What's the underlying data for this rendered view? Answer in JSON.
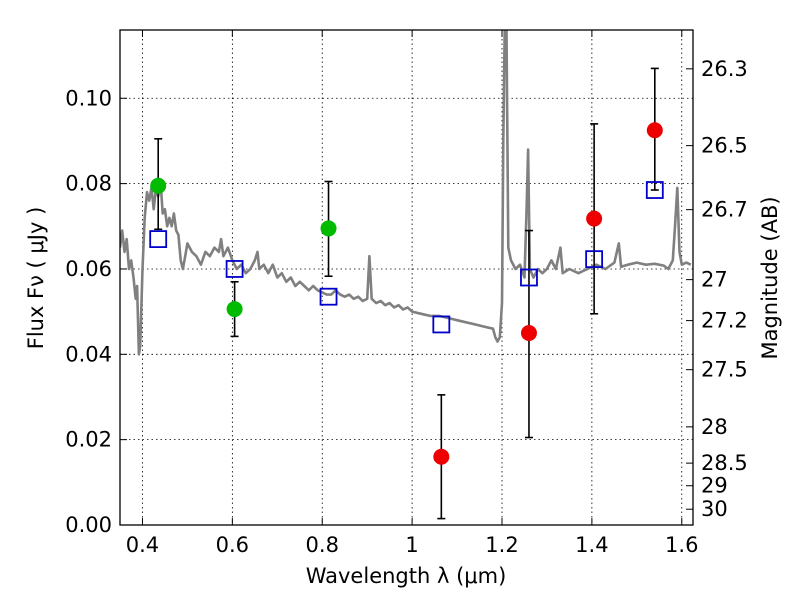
{
  "chart_data": {
    "type": "scatter",
    "xlabel": "Wavelength  λ (μm)",
    "ylabel": "Flux  Fν  ( μJy )",
    "ylabel_right": "Magnitude (AB)",
    "xlim": [
      0.35,
      1.625
    ],
    "ylim": [
      0.0,
      0.116
    ],
    "grid": true,
    "x_ticks": [
      {
        "value": 0.4,
        "label": "0.4"
      },
      {
        "value": 0.6,
        "label": "0.6"
      },
      {
        "value": 0.8,
        "label": "0.8"
      },
      {
        "value": 1.0,
        "label": "1"
      },
      {
        "value": 1.2,
        "label": "1.2"
      },
      {
        "value": 1.4,
        "label": "1.4"
      },
      {
        "value": 1.6,
        "label": "1.6"
      }
    ],
    "y_ticks": [
      {
        "value": 0.0,
        "label": "0.00"
      },
      {
        "value": 0.02,
        "label": "0.02"
      },
      {
        "value": 0.04,
        "label": "0.04"
      },
      {
        "value": 0.06,
        "label": "0.06"
      },
      {
        "value": 0.08,
        "label": "0.08"
      },
      {
        "value": 0.1,
        "label": "0.10"
      }
    ],
    "mag_ticks": [
      {
        "flux": 0.1069,
        "label": "26.3"
      },
      {
        "flux": 0.0889,
        "label": "26.5"
      },
      {
        "flux": 0.0739,
        "label": "26.7"
      },
      {
        "flux": 0.0575,
        "label": "27"
      },
      {
        "flux": 0.0479,
        "label": "27.2"
      },
      {
        "flux": 0.0364,
        "label": "27.5"
      },
      {
        "flux": 0.023,
        "label": "28"
      },
      {
        "flux": 0.0145,
        "label": "28.5"
      },
      {
        "flux": 0.0092,
        "label": "29"
      },
      {
        "flux": 0.0037,
        "label": "30"
      }
    ],
    "series": [
      {
        "name": "model-spectrum",
        "kind": "line",
        "color": "#808080",
        "points": [
          [
            0.35,
            0.065
          ],
          [
            0.355,
            0.069
          ],
          [
            0.36,
            0.064
          ],
          [
            0.365,
            0.067
          ],
          [
            0.37,
            0.06
          ],
          [
            0.375,
            0.062
          ],
          [
            0.38,
            0.058
          ],
          [
            0.385,
            0.053
          ],
          [
            0.388,
            0.056
          ],
          [
            0.392,
            0.04
          ],
          [
            0.395,
            0.042
          ],
          [
            0.4,
            0.06
          ],
          [
            0.405,
            0.072
          ],
          [
            0.41,
            0.078
          ],
          [
            0.415,
            0.076
          ],
          [
            0.42,
            0.079
          ],
          [
            0.425,
            0.074
          ],
          [
            0.43,
            0.079
          ],
          [
            0.435,
            0.077
          ],
          [
            0.44,
            0.081
          ],
          [
            0.445,
            0.073
          ],
          [
            0.45,
            0.074
          ],
          [
            0.455,
            0.07
          ],
          [
            0.46,
            0.072
          ],
          [
            0.465,
            0.07
          ],
          [
            0.47,
            0.073
          ],
          [
            0.475,
            0.069
          ],
          [
            0.48,
            0.068
          ],
          [
            0.485,
            0.062
          ],
          [
            0.49,
            0.06
          ],
          [
            0.495,
            0.063
          ],
          [
            0.5,
            0.066
          ],
          [
            0.51,
            0.064
          ],
          [
            0.52,
            0.063
          ],
          [
            0.53,
            0.061
          ],
          [
            0.54,
            0.064
          ],
          [
            0.55,
            0.063
          ],
          [
            0.56,
            0.065
          ],
          [
            0.57,
            0.064
          ],
          [
            0.575,
            0.067
          ],
          [
            0.58,
            0.063
          ],
          [
            0.59,
            0.065
          ],
          [
            0.6,
            0.062
          ],
          [
            0.61,
            0.06
          ],
          [
            0.62,
            0.061
          ],
          [
            0.63,
            0.059
          ],
          [
            0.64,
            0.06
          ],
          [
            0.65,
            0.062
          ],
          [
            0.656,
            0.064
          ],
          [
            0.66,
            0.06
          ],
          [
            0.67,
            0.061
          ],
          [
            0.68,
            0.059
          ],
          [
            0.69,
            0.061
          ],
          [
            0.7,
            0.058
          ],
          [
            0.71,
            0.059
          ],
          [
            0.72,
            0.057
          ],
          [
            0.73,
            0.058
          ],
          [
            0.74,
            0.056
          ],
          [
            0.75,
            0.057
          ],
          [
            0.76,
            0.056
          ],
          [
            0.77,
            0.055
          ],
          [
            0.78,
            0.056
          ],
          [
            0.79,
            0.055
          ],
          [
            0.8,
            0.0545
          ],
          [
            0.81,
            0.054
          ],
          [
            0.82,
            0.054
          ],
          [
            0.83,
            0.055
          ],
          [
            0.84,
            0.054
          ],
          [
            0.85,
            0.0535
          ],
          [
            0.86,
            0.054
          ],
          [
            0.87,
            0.053
          ],
          [
            0.88,
            0.0535
          ],
          [
            0.89,
            0.0525
          ],
          [
            0.9,
            0.053
          ],
          [
            0.905,
            0.063
          ],
          [
            0.91,
            0.053
          ],
          [
            0.92,
            0.052
          ],
          [
            0.93,
            0.0525
          ],
          [
            0.94,
            0.0515
          ],
          [
            0.95,
            0.052
          ],
          [
            0.96,
            0.051
          ],
          [
            0.97,
            0.0515
          ],
          [
            0.98,
            0.0505
          ],
          [
            0.99,
            0.051
          ],
          [
            1.0,
            0.05
          ],
          [
            1.02,
            0.0495
          ],
          [
            1.04,
            0.049
          ],
          [
            1.06,
            0.049
          ],
          [
            1.08,
            0.0485
          ],
          [
            1.1,
            0.048
          ],
          [
            1.12,
            0.0475
          ],
          [
            1.14,
            0.047
          ],
          [
            1.16,
            0.0465
          ],
          [
            1.18,
            0.046
          ],
          [
            1.185,
            0.044
          ],
          [
            1.19,
            0.043
          ],
          [
            1.195,
            0.044
          ],
          [
            1.2,
            0.052
          ],
          [
            1.203,
            0.09
          ],
          [
            1.206,
            0.116
          ],
          [
            1.21,
            0.116
          ],
          [
            1.214,
            0.065
          ],
          [
            1.22,
            0.062
          ],
          [
            1.23,
            0.06
          ],
          [
            1.24,
            0.061
          ],
          [
            1.25,
            0.058
          ],
          [
            1.255,
            0.075
          ],
          [
            1.258,
            0.088
          ],
          [
            1.262,
            0.06
          ],
          [
            1.27,
            0.058
          ],
          [
            1.28,
            0.06
          ],
          [
            1.29,
            0.059
          ],
          [
            1.3,
            0.06
          ],
          [
            1.31,
            0.062
          ],
          [
            1.32,
            0.06
          ],
          [
            1.33,
            0.065
          ],
          [
            1.335,
            0.059
          ],
          [
            1.35,
            0.06
          ],
          [
            1.37,
            0.059
          ],
          [
            1.39,
            0.06
          ],
          [
            1.41,
            0.061
          ],
          [
            1.43,
            0.06
          ],
          [
            1.45,
            0.0615
          ],
          [
            1.46,
            0.066
          ],
          [
            1.465,
            0.0605
          ],
          [
            1.48,
            0.061
          ],
          [
            1.5,
            0.0615
          ],
          [
            1.52,
            0.061
          ],
          [
            1.54,
            0.0612
          ],
          [
            1.56,
            0.0608
          ],
          [
            1.57,
            0.06
          ],
          [
            1.58,
            0.062
          ],
          [
            1.585,
            0.07
          ],
          [
            1.59,
            0.079
          ],
          [
            1.595,
            0.064
          ],
          [
            1.6,
            0.061
          ],
          [
            1.61,
            0.0615
          ],
          [
            1.62,
            0.061
          ]
        ]
      },
      {
        "name": "model-photometry",
        "kind": "square-marker",
        "color": "#0000cc",
        "points": [
          [
            0.435,
            0.067
          ],
          [
            0.605,
            0.06
          ],
          [
            0.814,
            0.0535
          ],
          [
            1.065,
            0.047
          ],
          [
            1.26,
            0.058
          ],
          [
            1.405,
            0.0623
          ],
          [
            1.54,
            0.0785
          ]
        ]
      },
      {
        "name": "observed-green",
        "kind": "circle-marker",
        "color": "#00bb00",
        "points": [
          {
            "x": 0.435,
            "y": 0.0795,
            "err_lo": 0.0693,
            "err_hi": 0.0905
          },
          {
            "x": 0.605,
            "y": 0.0506,
            "err_lo": 0.0442,
            "err_hi": 0.057
          },
          {
            "x": 0.814,
            "y": 0.0695,
            "err_lo": 0.0583,
            "err_hi": 0.0805
          }
        ]
      },
      {
        "name": "observed-red",
        "kind": "circle-marker",
        "color": "#ee0000",
        "points": [
          {
            "x": 1.065,
            "y": 0.016,
            "err_lo": 0.0015,
            "err_hi": 0.0305
          },
          {
            "x": 1.26,
            "y": 0.045,
            "err_lo": 0.0205,
            "err_hi": 0.069
          },
          {
            "x": 1.405,
            "y": 0.0718,
            "err_lo": 0.0495,
            "err_hi": 0.094
          },
          {
            "x": 1.54,
            "y": 0.0925,
            "err_lo": 0.0785,
            "err_hi": 0.107
          }
        ]
      }
    ]
  }
}
